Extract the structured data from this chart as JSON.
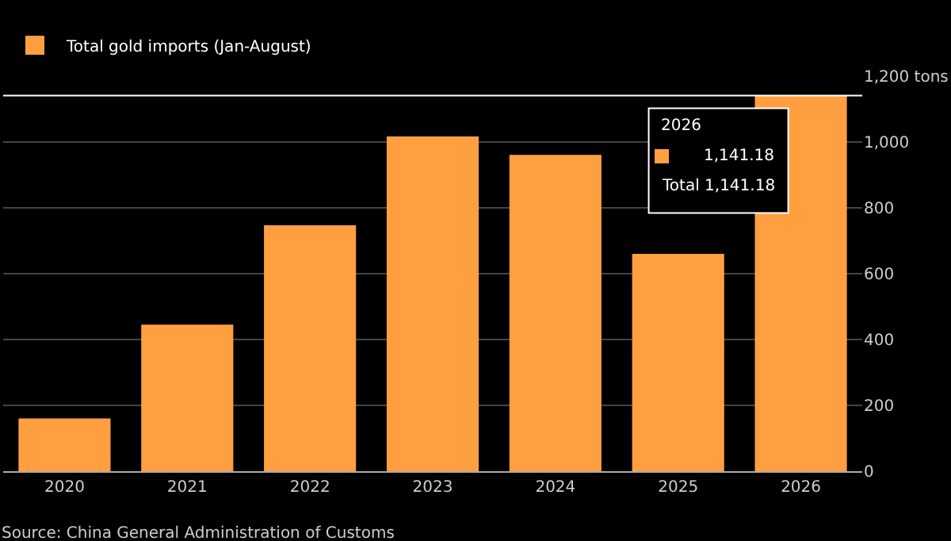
{
  "chart_data": {
    "type": "bar",
    "categories": [
      "2020",
      "2021",
      "2022",
      "2023",
      "2024",
      "2025",
      "2026"
    ],
    "series": [
      {
        "name": "Total gold imports (Jan-August)",
        "color": "#ff9f40",
        "values": [
          160,
          445,
          747,
          1017,
          961,
          660,
          1141.18
        ]
      }
    ],
    "ylim": [
      0,
      1200
    ],
    "yticks": [
      0,
      200,
      400,
      600,
      800,
      {
        "value": 1000,
        "label": "1,000"
      },
      {
        "value": 1200,
        "label": "1,200 tons"
      }
    ],
    "grid": "y",
    "legend": "top left",
    "ref_lines": [
      {
        "axis": "y",
        "value": 1141.18,
        "label": null,
        "color": "#ffffff"
      }
    ],
    "annotations": [
      "2026",
      "1,141.18",
      "Total 1,141.18",
      "Source: China General Administration of Customs"
    ]
  }
}
